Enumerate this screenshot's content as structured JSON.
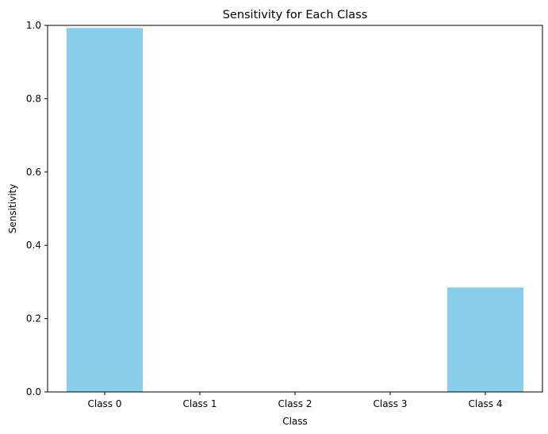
{
  "chart_data": {
    "type": "bar",
    "title": "Sensitivity for Each Class",
    "xlabel": "Class",
    "ylabel": "Sensitivity",
    "categories": [
      "Class 0",
      "Class 1",
      "Class 2",
      "Class 3",
      "Class 4"
    ],
    "values": [
      0.993,
      0.0,
      0.0,
      0.0,
      0.285
    ],
    "ylim": [
      0,
      1.0
    ],
    "yticks": [
      "0.0",
      "0.2",
      "0.4",
      "0.6",
      "0.8",
      "1.0"
    ],
    "grid": false,
    "bar_color": "#87ceeb"
  }
}
